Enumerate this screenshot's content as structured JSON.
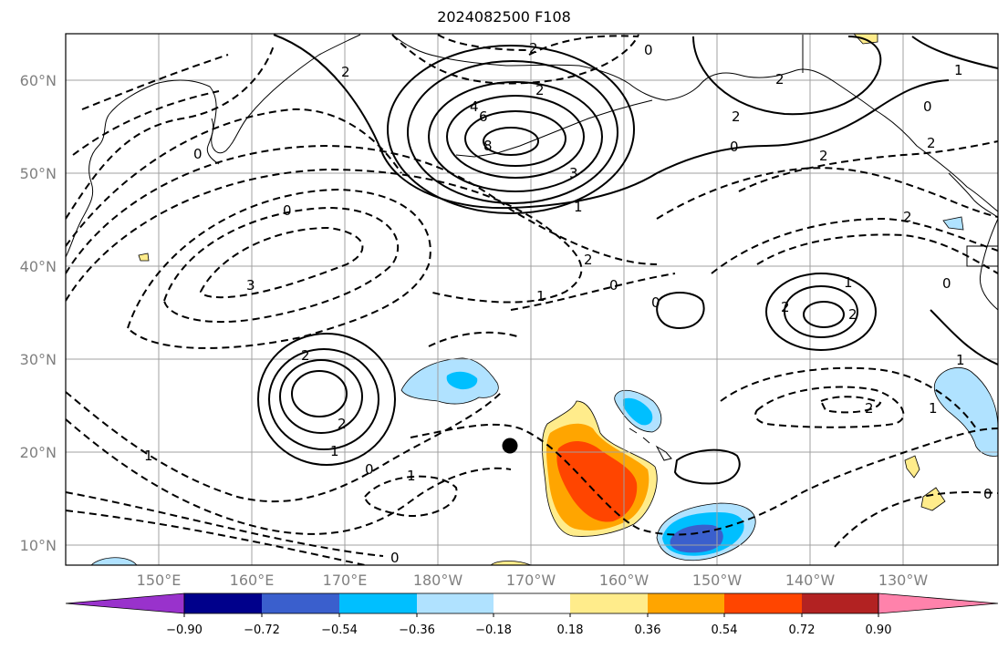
{
  "title": "2024082500 F108",
  "lat_ticks": [
    "10°N",
    "20°N",
    "30°N",
    "40°N",
    "50°N",
    "60°N"
  ],
  "lon_ticks": [
    "150°E",
    "160°E",
    "170°E",
    "180°W",
    "170°W",
    "160°W",
    "150°W",
    "140°W",
    "130°W"
  ],
  "colorbar": {
    "ticks": [
      "−0.90",
      "−0.72",
      "−0.54",
      "−0.36",
      "−0.18",
      "0.18",
      "0.36",
      "0.54",
      "0.72",
      "0.90"
    ],
    "colors": [
      "#9932cc",
      "#00008b",
      "#3a5fcd",
      "#00bfff",
      "#b0e2ff",
      "#ffffff",
      "#ffec8b",
      "#ffa500",
      "#ff4500",
      "#b22222",
      "#ff82ab"
    ]
  },
  "contour_labels": {
    "positive": [
      "2",
      "2",
      "4",
      "6",
      "8",
      "3",
      "2",
      "2",
      "1",
      "1",
      "2",
      "2",
      "1",
      "2",
      "2",
      "1"
    ],
    "negative": [
      "0",
      "0",
      "0",
      "2",
      "3",
      "1",
      "2",
      "0",
      "1",
      "0",
      "2",
      "1",
      "1",
      "0",
      "0",
      "0",
      "2",
      "2",
      "2",
      "1",
      "0",
      "0",
      "0"
    ]
  },
  "markers": {
    "dot": "black-dot"
  }
}
